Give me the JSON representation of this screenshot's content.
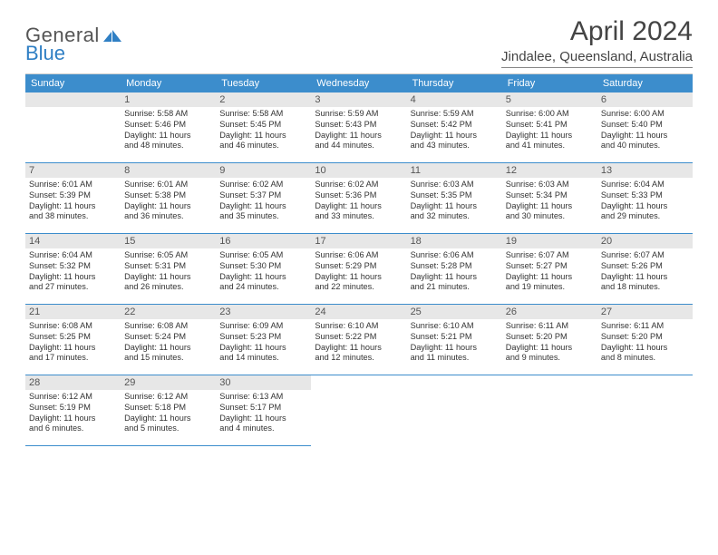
{
  "logo": {
    "word1": "General",
    "word2": "Blue"
  },
  "title": "April 2024",
  "location": "Jindalee, Queensland, Australia",
  "colors": {
    "header_bg": "#3c8dcc",
    "header_text": "#ffffff",
    "daynum_bg": "#e7e7e7",
    "rule": "#3c8dcc",
    "text": "#333333"
  },
  "weekdays": [
    "Sunday",
    "Monday",
    "Tuesday",
    "Wednesday",
    "Thursday",
    "Friday",
    "Saturday"
  ],
  "leading_blank": 1,
  "days": [
    {
      "n": 1,
      "rise": "5:58 AM",
      "set": "5:46 PM",
      "d1": "11 hours",
      "d2": "and 48 minutes."
    },
    {
      "n": 2,
      "rise": "5:58 AM",
      "set": "5:45 PM",
      "d1": "11 hours",
      "d2": "and 46 minutes."
    },
    {
      "n": 3,
      "rise": "5:59 AM",
      "set": "5:43 PM",
      "d1": "11 hours",
      "d2": "and 44 minutes."
    },
    {
      "n": 4,
      "rise": "5:59 AM",
      "set": "5:42 PM",
      "d1": "11 hours",
      "d2": "and 43 minutes."
    },
    {
      "n": 5,
      "rise": "6:00 AM",
      "set": "5:41 PM",
      "d1": "11 hours",
      "d2": "and 41 minutes."
    },
    {
      "n": 6,
      "rise": "6:00 AM",
      "set": "5:40 PM",
      "d1": "11 hours",
      "d2": "and 40 minutes."
    },
    {
      "n": 7,
      "rise": "6:01 AM",
      "set": "5:39 PM",
      "d1": "11 hours",
      "d2": "and 38 minutes."
    },
    {
      "n": 8,
      "rise": "6:01 AM",
      "set": "5:38 PM",
      "d1": "11 hours",
      "d2": "and 36 minutes."
    },
    {
      "n": 9,
      "rise": "6:02 AM",
      "set": "5:37 PM",
      "d1": "11 hours",
      "d2": "and 35 minutes."
    },
    {
      "n": 10,
      "rise": "6:02 AM",
      "set": "5:36 PM",
      "d1": "11 hours",
      "d2": "and 33 minutes."
    },
    {
      "n": 11,
      "rise": "6:03 AM",
      "set": "5:35 PM",
      "d1": "11 hours",
      "d2": "and 32 minutes."
    },
    {
      "n": 12,
      "rise": "6:03 AM",
      "set": "5:34 PM",
      "d1": "11 hours",
      "d2": "and 30 minutes."
    },
    {
      "n": 13,
      "rise": "6:04 AM",
      "set": "5:33 PM",
      "d1": "11 hours",
      "d2": "and 29 minutes."
    },
    {
      "n": 14,
      "rise": "6:04 AM",
      "set": "5:32 PM",
      "d1": "11 hours",
      "d2": "and 27 minutes."
    },
    {
      "n": 15,
      "rise": "6:05 AM",
      "set": "5:31 PM",
      "d1": "11 hours",
      "d2": "and 26 minutes."
    },
    {
      "n": 16,
      "rise": "6:05 AM",
      "set": "5:30 PM",
      "d1": "11 hours",
      "d2": "and 24 minutes."
    },
    {
      "n": 17,
      "rise": "6:06 AM",
      "set": "5:29 PM",
      "d1": "11 hours",
      "d2": "and 22 minutes."
    },
    {
      "n": 18,
      "rise": "6:06 AM",
      "set": "5:28 PM",
      "d1": "11 hours",
      "d2": "and 21 minutes."
    },
    {
      "n": 19,
      "rise": "6:07 AM",
      "set": "5:27 PM",
      "d1": "11 hours",
      "d2": "and 19 minutes."
    },
    {
      "n": 20,
      "rise": "6:07 AM",
      "set": "5:26 PM",
      "d1": "11 hours",
      "d2": "and 18 minutes."
    },
    {
      "n": 21,
      "rise": "6:08 AM",
      "set": "5:25 PM",
      "d1": "11 hours",
      "d2": "and 17 minutes."
    },
    {
      "n": 22,
      "rise": "6:08 AM",
      "set": "5:24 PM",
      "d1": "11 hours",
      "d2": "and 15 minutes."
    },
    {
      "n": 23,
      "rise": "6:09 AM",
      "set": "5:23 PM",
      "d1": "11 hours",
      "d2": "and 14 minutes."
    },
    {
      "n": 24,
      "rise": "6:10 AM",
      "set": "5:22 PM",
      "d1": "11 hours",
      "d2": "and 12 minutes."
    },
    {
      "n": 25,
      "rise": "6:10 AM",
      "set": "5:21 PM",
      "d1": "11 hours",
      "d2": "and 11 minutes."
    },
    {
      "n": 26,
      "rise": "6:11 AM",
      "set": "5:20 PM",
      "d1": "11 hours",
      "d2": "and 9 minutes."
    },
    {
      "n": 27,
      "rise": "6:11 AM",
      "set": "5:20 PM",
      "d1": "11 hours",
      "d2": "and 8 minutes."
    },
    {
      "n": 28,
      "rise": "6:12 AM",
      "set": "5:19 PM",
      "d1": "11 hours",
      "d2": "and 6 minutes."
    },
    {
      "n": 29,
      "rise": "6:12 AM",
      "set": "5:18 PM",
      "d1": "11 hours",
      "d2": "and 5 minutes."
    },
    {
      "n": 30,
      "rise": "6:13 AM",
      "set": "5:17 PM",
      "d1": "11 hours",
      "d2": "and 4 minutes."
    }
  ],
  "labels": {
    "sunrise": "Sunrise:",
    "sunset": "Sunset:",
    "daylight": "Daylight:"
  }
}
